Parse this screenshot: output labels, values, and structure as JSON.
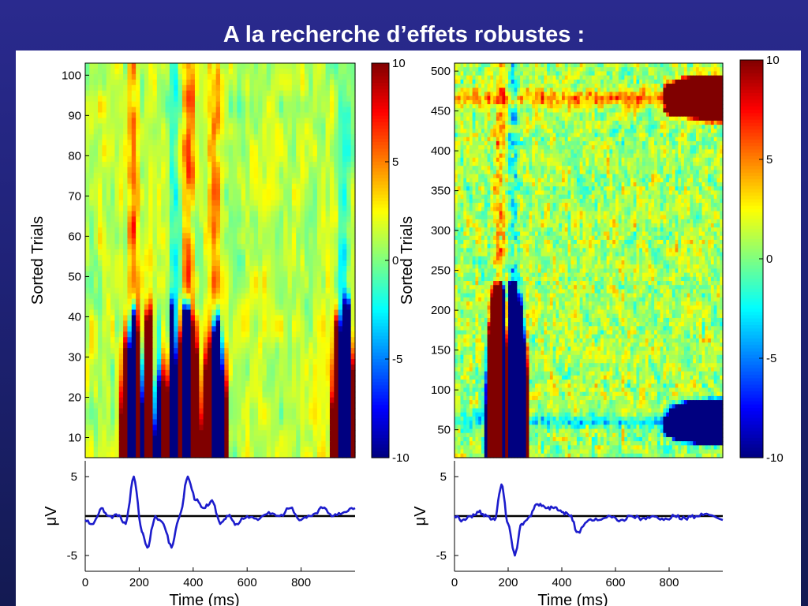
{
  "slide": {
    "title": "A la recherche d’effets robustes :"
  },
  "colors": {
    "background": "#1f2277",
    "trace": "#1c1ccc",
    "baseline": "#000000",
    "colormap": "jet"
  },
  "chart_data": [
    {
      "type": "heatmap",
      "id": "left-erpimage",
      "ylabel": "Sorted Trials",
      "xlabel": "",
      "ylim": [
        5,
        103
      ],
      "yticks": [
        10,
        20,
        30,
        40,
        50,
        60,
        70,
        80,
        90,
        100
      ],
      "xlim": [
        0,
        1000
      ],
      "colorbar": {
        "range": [
          -10,
          10
        ],
        "ticks": [
          -10,
          -5,
          0,
          5,
          10
        ]
      },
      "features": [
        {
          "time_ms": 180,
          "value": 6
        },
        {
          "time_ms": 230,
          "value": 5
        },
        {
          "time_ms": 380,
          "value": 8
        },
        {
          "time_ms": 480,
          "value": 6
        },
        {
          "time_ms": 330,
          "value": -5
        },
        {
          "time_ms": 220,
          "value": -4
        },
        {
          "time_ms": 960,
          "value": -5
        }
      ]
    },
    {
      "type": "line",
      "id": "left-erp",
      "xlabel": "Time (ms)",
      "ylabel": "μV",
      "xlim": [
        0,
        1000
      ],
      "ylim": [
        -7,
        7
      ],
      "xticks": [
        0,
        200,
        400,
        600,
        800
      ],
      "yticks": [
        -5,
        5
      ],
      "series": [
        {
          "x": [
            0,
            30,
            60,
            90,
            120,
            150,
            180,
            210,
            230,
            260,
            290,
            320,
            350,
            380,
            410,
            440,
            470,
            500,
            530,
            560,
            600,
            640,
            680,
            720,
            760,
            800,
            840,
            880,
            920,
            960,
            1000
          ],
          "values": [
            -0.5,
            -1,
            1,
            0,
            0,
            -1,
            5,
            -2,
            -4,
            0,
            -1,
            -4,
            0,
            5,
            2,
            1,
            2,
            -1,
            0,
            -1,
            0,
            -0.5,
            0.5,
            0,
            1,
            -0.5,
            0,
            1,
            0,
            0.5,
            1
          ]
        }
      ]
    },
    {
      "type": "heatmap",
      "id": "right-erpimage",
      "ylabel": "Sorted Trials",
      "xlabel": "",
      "ylim": [
        15,
        510
      ],
      "yticks": [
        50,
        100,
        150,
        200,
        250,
        300,
        350,
        400,
        450,
        500
      ],
      "xlim": [
        0,
        1000
      ],
      "colorbar": {
        "range": [
          -10,
          10
        ],
        "ticks": [
          -10,
          -5,
          0,
          5,
          10
        ]
      },
      "features": [
        {
          "time_ms": 170,
          "value": 6
        },
        {
          "time_ms": 220,
          "value": -6
        },
        {
          "trial": 465,
          "value": 7
        },
        {
          "trial": 60,
          "value": -6
        }
      ]
    },
    {
      "type": "line",
      "id": "right-erp",
      "xlabel": "Time (ms)",
      "ylabel": "μV",
      "xlim": [
        0,
        1000
      ],
      "ylim": [
        -7,
        7
      ],
      "xticks": [
        0,
        200,
        400,
        600,
        800
      ],
      "yticks": [
        -5,
        5
      ],
      "series": [
        {
          "x": [
            0,
            30,
            60,
            90,
            120,
            150,
            175,
            200,
            225,
            250,
            280,
            310,
            340,
            370,
            400,
            430,
            460,
            500,
            540,
            580,
            620,
            660,
            700,
            740,
            780,
            820,
            860,
            900,
            940,
            1000
          ],
          "values": [
            0,
            -0.5,
            0,
            0.5,
            0,
            -0.5,
            4,
            -1,
            -5,
            -1,
            0,
            1.5,
            1,
            1,
            0.5,
            0,
            -2,
            -0.5,
            -0.5,
            0,
            -0.5,
            0,
            -0.3,
            0,
            -0.5,
            0,
            -0.3,
            0,
            0.3,
            -0.5
          ]
        }
      ]
    }
  ]
}
